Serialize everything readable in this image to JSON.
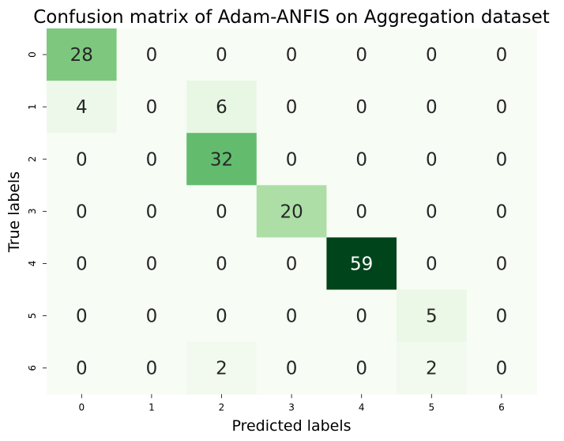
{
  "chart_data": {
    "type": "heatmap",
    "title": "Confusion matrix of Adam-ANFIS on Aggregation dataset",
    "xlabel": "Predicted labels",
    "ylabel": "True labels",
    "x_categories": [
      "0",
      "1",
      "2",
      "3",
      "4",
      "5",
      "6"
    ],
    "y_categories": [
      "0",
      "1",
      "2",
      "3",
      "4",
      "5",
      "6"
    ],
    "values": [
      [
        28,
        0,
        0,
        0,
        0,
        0,
        0
      ],
      [
        4,
        0,
        6,
        0,
        0,
        0,
        0
      ],
      [
        0,
        0,
        32,
        0,
        0,
        0,
        0
      ],
      [
        0,
        0,
        0,
        20,
        0,
        0,
        0
      ],
      [
        0,
        0,
        0,
        0,
        59,
        0,
        0
      ],
      [
        0,
        0,
        0,
        0,
        0,
        5,
        0
      ],
      [
        0,
        0,
        2,
        0,
        0,
        2,
        0
      ]
    ],
    "colormap": "Greens",
    "value_range": [
      0,
      59
    ],
    "colorbar": false,
    "colors": {
      "low": "#f7fcf5",
      "high": "#00441b"
    }
  }
}
